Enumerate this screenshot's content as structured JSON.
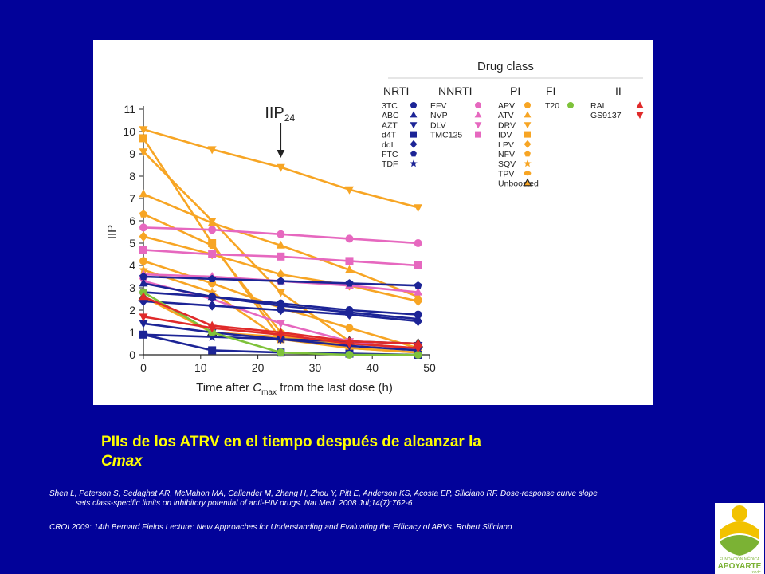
{
  "colors": {
    "background": "#020299",
    "caption": "#ffff00",
    "NRTI": "#1c2496",
    "NNRTI": "#e668bf",
    "PI": "#f7a524",
    "FI": "#7ec23a",
    "II": "#e02a2a",
    "axis": "#222222"
  },
  "caption": {
    "line1": "PIIs de los ATRV en el tiempo después de alcanzar la",
    "line2": "Cmax"
  },
  "references": {
    "ref1_line1": "Shen L, Peterson S, Sedaghat AR, McMahon MA, Callender M, Zhang H, Zhou Y, Pitt E, Anderson KS, Acosta EP, Siliciano RF. Dose-response curve slope",
    "ref1_line2": "sets class-specific limits on inhibitory potential of anti-HIV drugs. Nat Med. 2008 Jul;14(7):762-6",
    "ref2": "CROI 2009: 14th Bernard Fields Lecture: New Approaches for Understanding and Evaluating the Efficacy of ARVs. Robert Siliciano"
  },
  "logo": {
    "line1": "FUNDACIÓN MÉDICA",
    "line2": "APOYARTE",
    "line3": "vivir"
  },
  "chart_data": {
    "type": "line",
    "xlabel_parts": [
      "Time after ",
      "C",
      "max",
      " from the last dose (h)"
    ],
    "ylabel": "IIP",
    "xlim": [
      0,
      50
    ],
    "ylim": [
      0,
      11
    ],
    "x_ticks": [
      0,
      10,
      20,
      30,
      40,
      50
    ],
    "y_ticks": [
      0,
      1,
      2,
      3,
      4,
      5,
      6,
      7,
      8,
      9,
      10,
      11
    ],
    "annotation": {
      "label": "IIP",
      "subscript": "24",
      "x": 24
    },
    "legend": {
      "title": "Drug class",
      "placement": "top-right",
      "classes": [
        {
          "name": "NRTI",
          "color_key": "NRTI",
          "drugs": [
            {
              "name": "3TC",
              "marker": "circle"
            },
            {
              "name": "ABC",
              "marker": "triangle-up"
            },
            {
              "name": "AZT",
              "marker": "triangle-down"
            },
            {
              "name": "d4T",
              "marker": "square"
            },
            {
              "name": "ddI",
              "marker": "diamond"
            },
            {
              "name": "FTC",
              "marker": "pentagon"
            },
            {
              "name": "TDF",
              "marker": "star"
            }
          ]
        },
        {
          "name": "NNRTI",
          "color_key": "NNRTI",
          "drugs": [
            {
              "name": "EFV",
              "marker": "circle"
            },
            {
              "name": "NVP",
              "marker": "triangle-up"
            },
            {
              "name": "DLV",
              "marker": "triangle-down"
            },
            {
              "name": "TMC125",
              "marker": "square"
            }
          ]
        },
        {
          "name": "PI",
          "color_key": "PI",
          "drugs": [
            {
              "name": "APV",
              "marker": "circle"
            },
            {
              "name": "ATV",
              "marker": "triangle-up"
            },
            {
              "name": "DRV",
              "marker": "triangle-down"
            },
            {
              "name": "IDV",
              "marker": "square"
            },
            {
              "name": "LPV",
              "marker": "diamond"
            },
            {
              "name": "NFV",
              "marker": "pentagon"
            },
            {
              "name": "SQV",
              "marker": "star"
            },
            {
              "name": "TPV",
              "marker": "ellipse"
            },
            {
              "name": "Unboosted",
              "marker": "triangle-outline"
            }
          ]
        },
        {
          "name": "FI",
          "color_key": "FI",
          "drugs": [
            {
              "name": "T20",
              "marker": "circle"
            }
          ]
        },
        {
          "name": "II",
          "color_key": "II",
          "drugs": [
            {
              "name": "RAL",
              "marker": "triangle-up"
            },
            {
              "name": "GS9137",
              "marker": "triangle-down"
            }
          ]
        }
      ]
    },
    "series": [
      {
        "class": "PI",
        "marker": "triangle-down",
        "x": [
          0,
          12,
          24,
          36,
          48
        ],
        "y": [
          10.1,
          9.2,
          8.4,
          7.4,
          6.6
        ]
      },
      {
        "class": "PI",
        "marker": "square",
        "x": [
          0,
          12,
          24,
          36,
          48
        ],
        "y": [
          9.7,
          5.0,
          0.7,
          0.3,
          0.1
        ]
      },
      {
        "class": "PI",
        "marker": "triangle-down",
        "x": [
          0,
          12,
          24,
          36,
          48
        ],
        "y": [
          9.1,
          6.0,
          2.8,
          0.6,
          0.2
        ]
      },
      {
        "class": "PI",
        "marker": "triangle-up",
        "x": [
          0,
          12,
          24,
          36,
          48
        ],
        "y": [
          7.2,
          5.9,
          4.9,
          3.8,
          2.6
        ]
      },
      {
        "class": "PI",
        "marker": "pentagon",
        "x": [
          0,
          12,
          24,
          36,
          48
        ],
        "y": [
          6.3,
          4.9,
          1.0,
          0.3,
          0.1
        ]
      },
      {
        "class": "PI",
        "marker": "diamond",
        "x": [
          0,
          12,
          24,
          36,
          48
        ],
        "y": [
          5.3,
          4.5,
          3.6,
          3.1,
          2.4
        ]
      },
      {
        "class": "PI",
        "marker": "circle",
        "x": [
          0,
          12,
          24,
          36,
          48
        ],
        "y": [
          4.2,
          3.2,
          2.1,
          1.2,
          0.3
        ]
      },
      {
        "class": "PI",
        "marker": "star",
        "x": [
          0,
          12,
          24,
          36,
          48
        ],
        "y": [
          3.8,
          2.8,
          0.7,
          0.5,
          0.3
        ]
      },
      {
        "class": "PI",
        "marker": "triangle-outline",
        "x": [
          0,
          12,
          24,
          36,
          48
        ],
        "y": [
          2.6,
          1.0,
          0.8,
          0.6,
          0.5
        ]
      },
      {
        "class": "NNRTI",
        "marker": "circle",
        "x": [
          0,
          12,
          24,
          36,
          48
        ],
        "y": [
          5.7,
          5.6,
          5.4,
          5.2,
          5.0
        ]
      },
      {
        "class": "NNRTI",
        "marker": "square",
        "x": [
          0,
          12,
          24,
          36,
          48
        ],
        "y": [
          4.7,
          4.5,
          4.4,
          4.2,
          4.0
        ]
      },
      {
        "class": "NNRTI",
        "marker": "triangle-up",
        "x": [
          0,
          12,
          24,
          36,
          48
        ],
        "y": [
          3.6,
          3.5,
          3.3,
          3.1,
          2.8
        ]
      },
      {
        "class": "NNRTI",
        "marker": "triangle-down",
        "x": [
          0,
          12,
          24,
          36,
          48
        ],
        "y": [
          3.3,
          2.5,
          1.4,
          0.6,
          0.2
        ]
      },
      {
        "class": "NRTI",
        "marker": "pentagon",
        "x": [
          0,
          12,
          24,
          36,
          48
        ],
        "y": [
          3.5,
          3.4,
          3.3,
          3.2,
          3.1
        ]
      },
      {
        "class": "NRTI",
        "marker": "triangle-up",
        "x": [
          0,
          12,
          24,
          36,
          48
        ],
        "y": [
          3.2,
          2.6,
          2.2,
          1.9,
          1.6
        ]
      },
      {
        "class": "NRTI",
        "marker": "circle",
        "x": [
          0,
          12,
          24,
          36,
          48
        ],
        "y": [
          2.8,
          2.6,
          2.3,
          2.0,
          1.8
        ]
      },
      {
        "class": "NRTI",
        "marker": "diamond",
        "x": [
          0,
          12,
          24,
          36,
          48
        ],
        "y": [
          2.4,
          2.2,
          2.0,
          1.8,
          1.5
        ]
      },
      {
        "class": "NRTI",
        "marker": "triangle-down",
        "x": [
          0,
          12,
          24,
          36,
          48
        ],
        "y": [
          1.4,
          1.0,
          0.7,
          0.4,
          0.2
        ]
      },
      {
        "class": "NRTI",
        "marker": "star",
        "x": [
          0,
          12,
          24,
          36,
          48
        ],
        "y": [
          0.9,
          0.8,
          0.7,
          0.6,
          0.5
        ]
      },
      {
        "class": "NRTI",
        "marker": "square",
        "x": [
          0,
          12,
          24,
          36,
          48
        ],
        "y": [
          0.9,
          0.2,
          0.1,
          0.05,
          0.0
        ]
      },
      {
        "class": "FI",
        "marker": "circle",
        "x": [
          0,
          12,
          24,
          36,
          48
        ],
        "y": [
          2.8,
          1.0,
          0.1,
          0.0,
          0.0
        ]
      },
      {
        "class": "II",
        "marker": "triangle-up",
        "x": [
          0,
          12,
          24,
          36,
          48
        ],
        "y": [
          2.6,
          1.3,
          1.0,
          0.6,
          0.5
        ]
      },
      {
        "class": "II",
        "marker": "triangle-down",
        "x": [
          0,
          12,
          24,
          36,
          48
        ],
        "y": [
          1.7,
          1.2,
          0.9,
          0.5,
          0.3
        ]
      }
    ]
  }
}
